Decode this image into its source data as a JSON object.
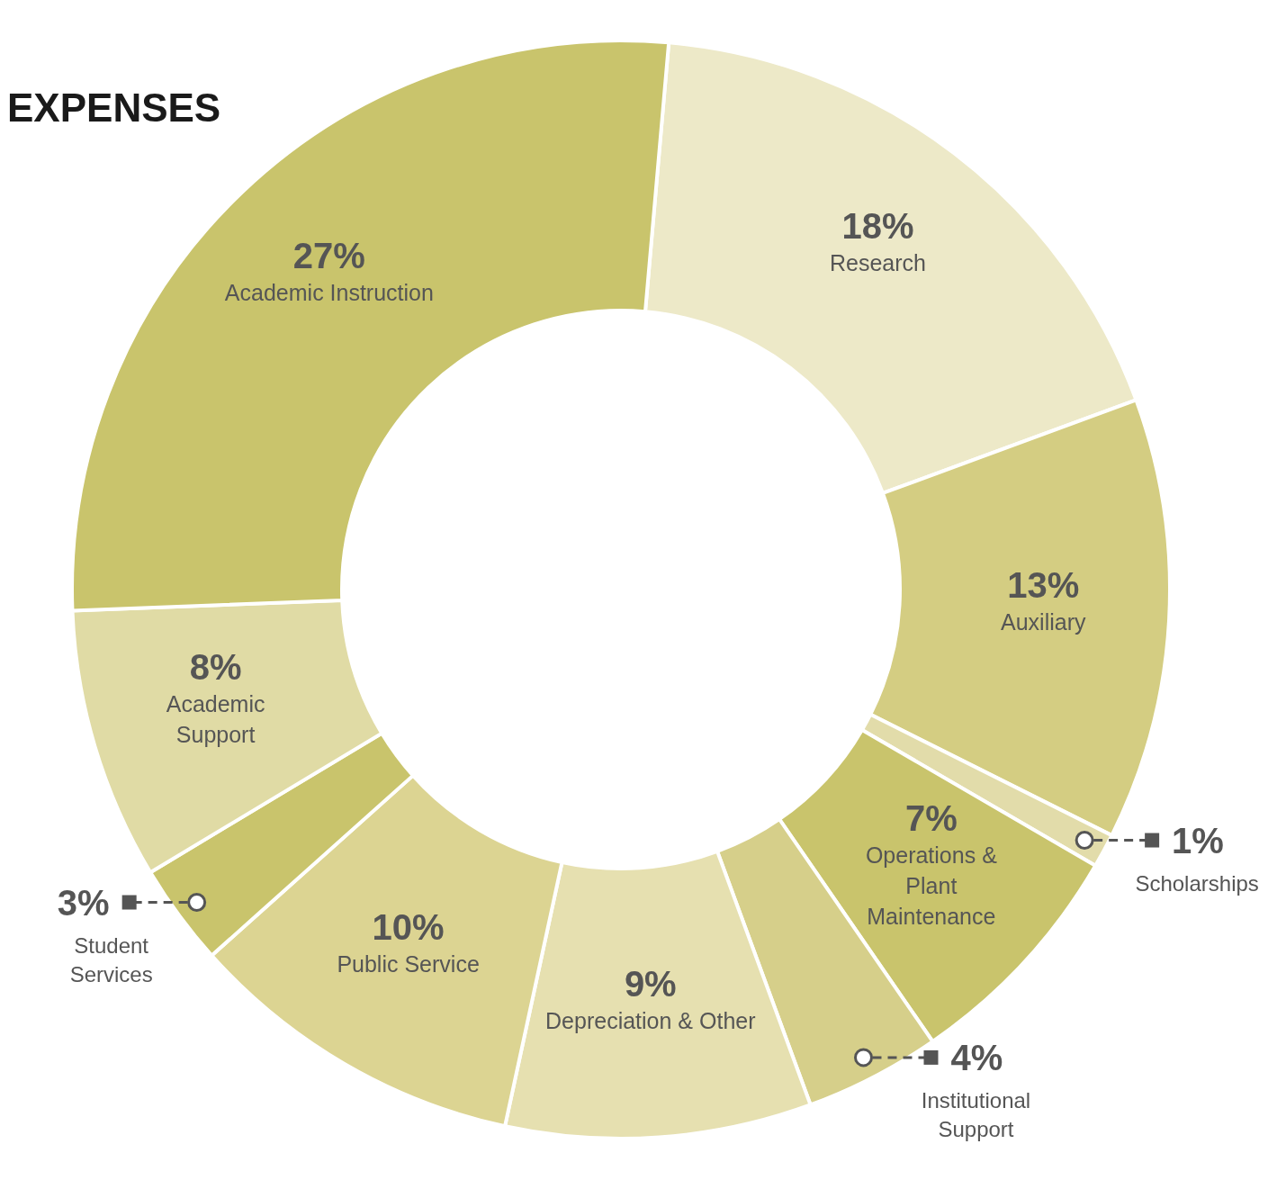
{
  "chart_data": {
    "type": "donut",
    "title": "EXPENSES",
    "categories": [
      "Research",
      "Auxiliary",
      "Scholarships",
      "Operations & Plant Maintenance",
      "Institutional Support",
      "Depreciation & Other",
      "Public Service",
      "Student Services",
      "Academic Support",
      "Academic Instruction"
    ],
    "values": [
      18,
      13,
      1,
      7,
      4,
      9,
      10,
      3,
      8,
      27
    ],
    "value_labels": [
      "18%",
      "13%",
      "1%",
      "7%",
      "4%",
      "9%",
      "10%",
      "3%",
      "8%",
      "27%"
    ],
    "colors": [
      "#ede9c8",
      "#d4cd82",
      "#e2dcaa",
      "#c9c46c",
      "#d6cf8a",
      "#e6e0b0",
      "#dcd492",
      "#c9c46c",
      "#e0dba5",
      "#c9c46c"
    ]
  }
}
